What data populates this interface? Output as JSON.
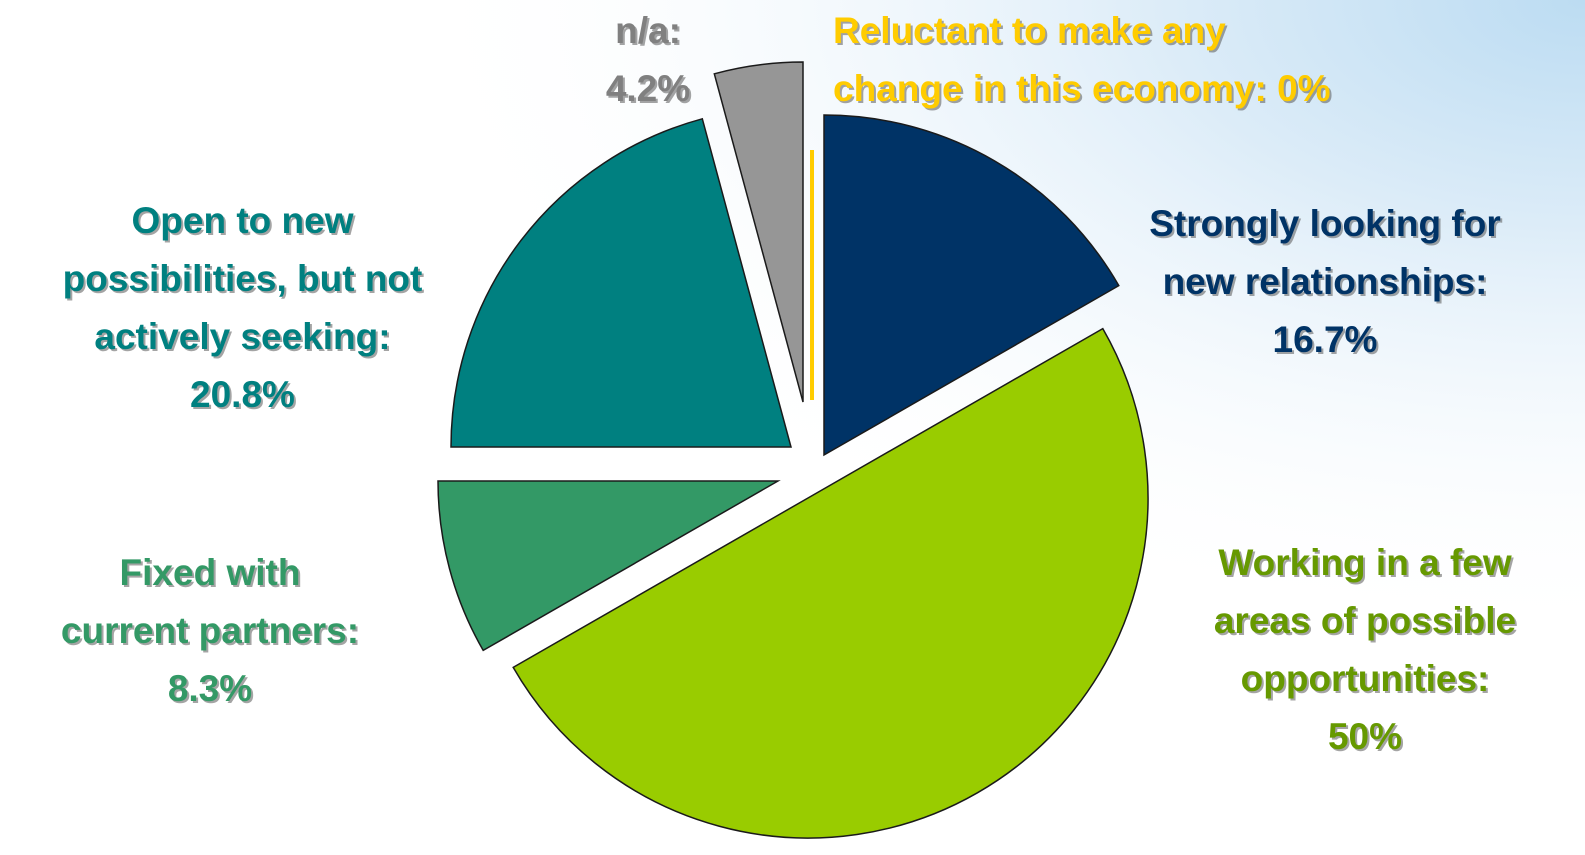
{
  "chart_data": {
    "type": "pie",
    "slices": [
      {
        "label": "Strongly looking for new relationships",
        "value": 16.7,
        "display": "16.7%",
        "color": "#003366"
      },
      {
        "label": "Working in a few areas of possible opportunities",
        "value": 50,
        "display": "50%",
        "color": "#99cc00"
      },
      {
        "label": "Fixed with current partners",
        "value": 8.3,
        "display": "8.3%",
        "color": "#339966"
      },
      {
        "label": "Open to new possibilities, but not actively seeking",
        "value": 20.8,
        "display": "20.8%",
        "color": "#008080"
      },
      {
        "label": "n/a",
        "value": 4.2,
        "display": "4.2%",
        "color": "#969696"
      },
      {
        "label": "Reluctant to make any change in this economy",
        "value": 0,
        "display": "0%",
        "color": "#ffcc00"
      }
    ],
    "start_angle_deg": 0,
    "direction": "clockwise",
    "exploded": true
  },
  "labels": {
    "strongly": [
      "Strongly looking for",
      "new relationships:",
      "16.7%"
    ],
    "working": [
      "Working in a few",
      "areas of possible",
      "opportunities:",
      "50%"
    ],
    "fixed": [
      "Fixed with",
      "current partners:",
      "8.3%"
    ],
    "open": [
      "Open to new",
      "possibilities, but not",
      "actively seeking:",
      "20.8%"
    ],
    "na": [
      "n/a:",
      "4.2%"
    ],
    "reluctant": [
      "Reluctant to make any",
      "change in this economy: 0%"
    ]
  },
  "colors": {
    "strongly_text": "#003366",
    "working_text": "#669900",
    "fixed_text": "#339966",
    "open_text": "#008080",
    "na_text": "#808080",
    "reluctant_text": "#ffcc00"
  }
}
